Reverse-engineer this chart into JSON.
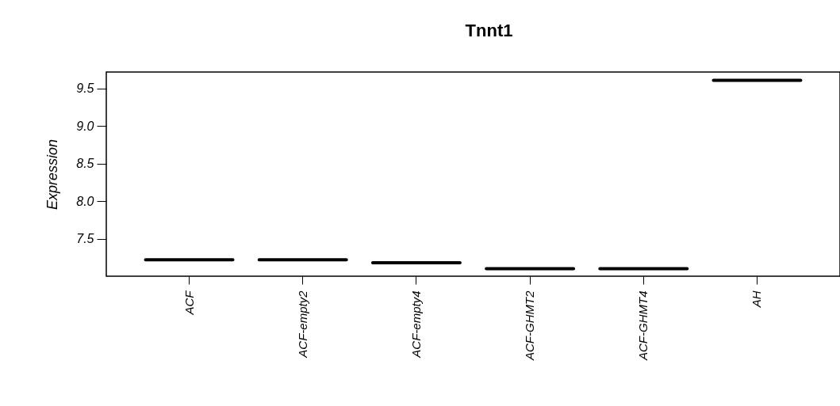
{
  "chart_data": {
    "type": "box",
    "title": "Tnnt1",
    "ylabel": "Expression",
    "categories": [
      "ACF",
      "ACF-empty2",
      "ACF-empty4",
      "ACF-GHMT2",
      "ACF-GHMT4",
      "AH"
    ],
    "boxes": [
      {
        "low": 7.22,
        "q1": 7.22,
        "median": 7.22,
        "q3": 7.22,
        "high": 7.22
      },
      {
        "low": 7.22,
        "q1": 7.22,
        "median": 7.22,
        "q3": 7.22,
        "high": 7.22
      },
      {
        "low": 7.18,
        "q1": 7.18,
        "median": 7.18,
        "q3": 7.18,
        "high": 7.18
      },
      {
        "low": 7.1,
        "q1": 7.1,
        "median": 7.1,
        "q3": 7.1,
        "high": 7.1
      },
      {
        "low": 7.1,
        "q1": 7.1,
        "median": 7.1,
        "q3": 7.1,
        "high": 7.1
      },
      {
        "low": 9.61,
        "q1": 9.61,
        "median": 9.61,
        "q3": 9.61,
        "high": 9.61
      }
    ],
    "color": "#000000",
    "ylim": [
      7.0,
      9.72
    ],
    "yticks": [
      7.5,
      {
        "value": 8,
        "label": "8.0"
      },
      8.5,
      {
        "value": 9,
        "label": "9.0"
      },
      9.5
    ],
    "grid": false
  }
}
